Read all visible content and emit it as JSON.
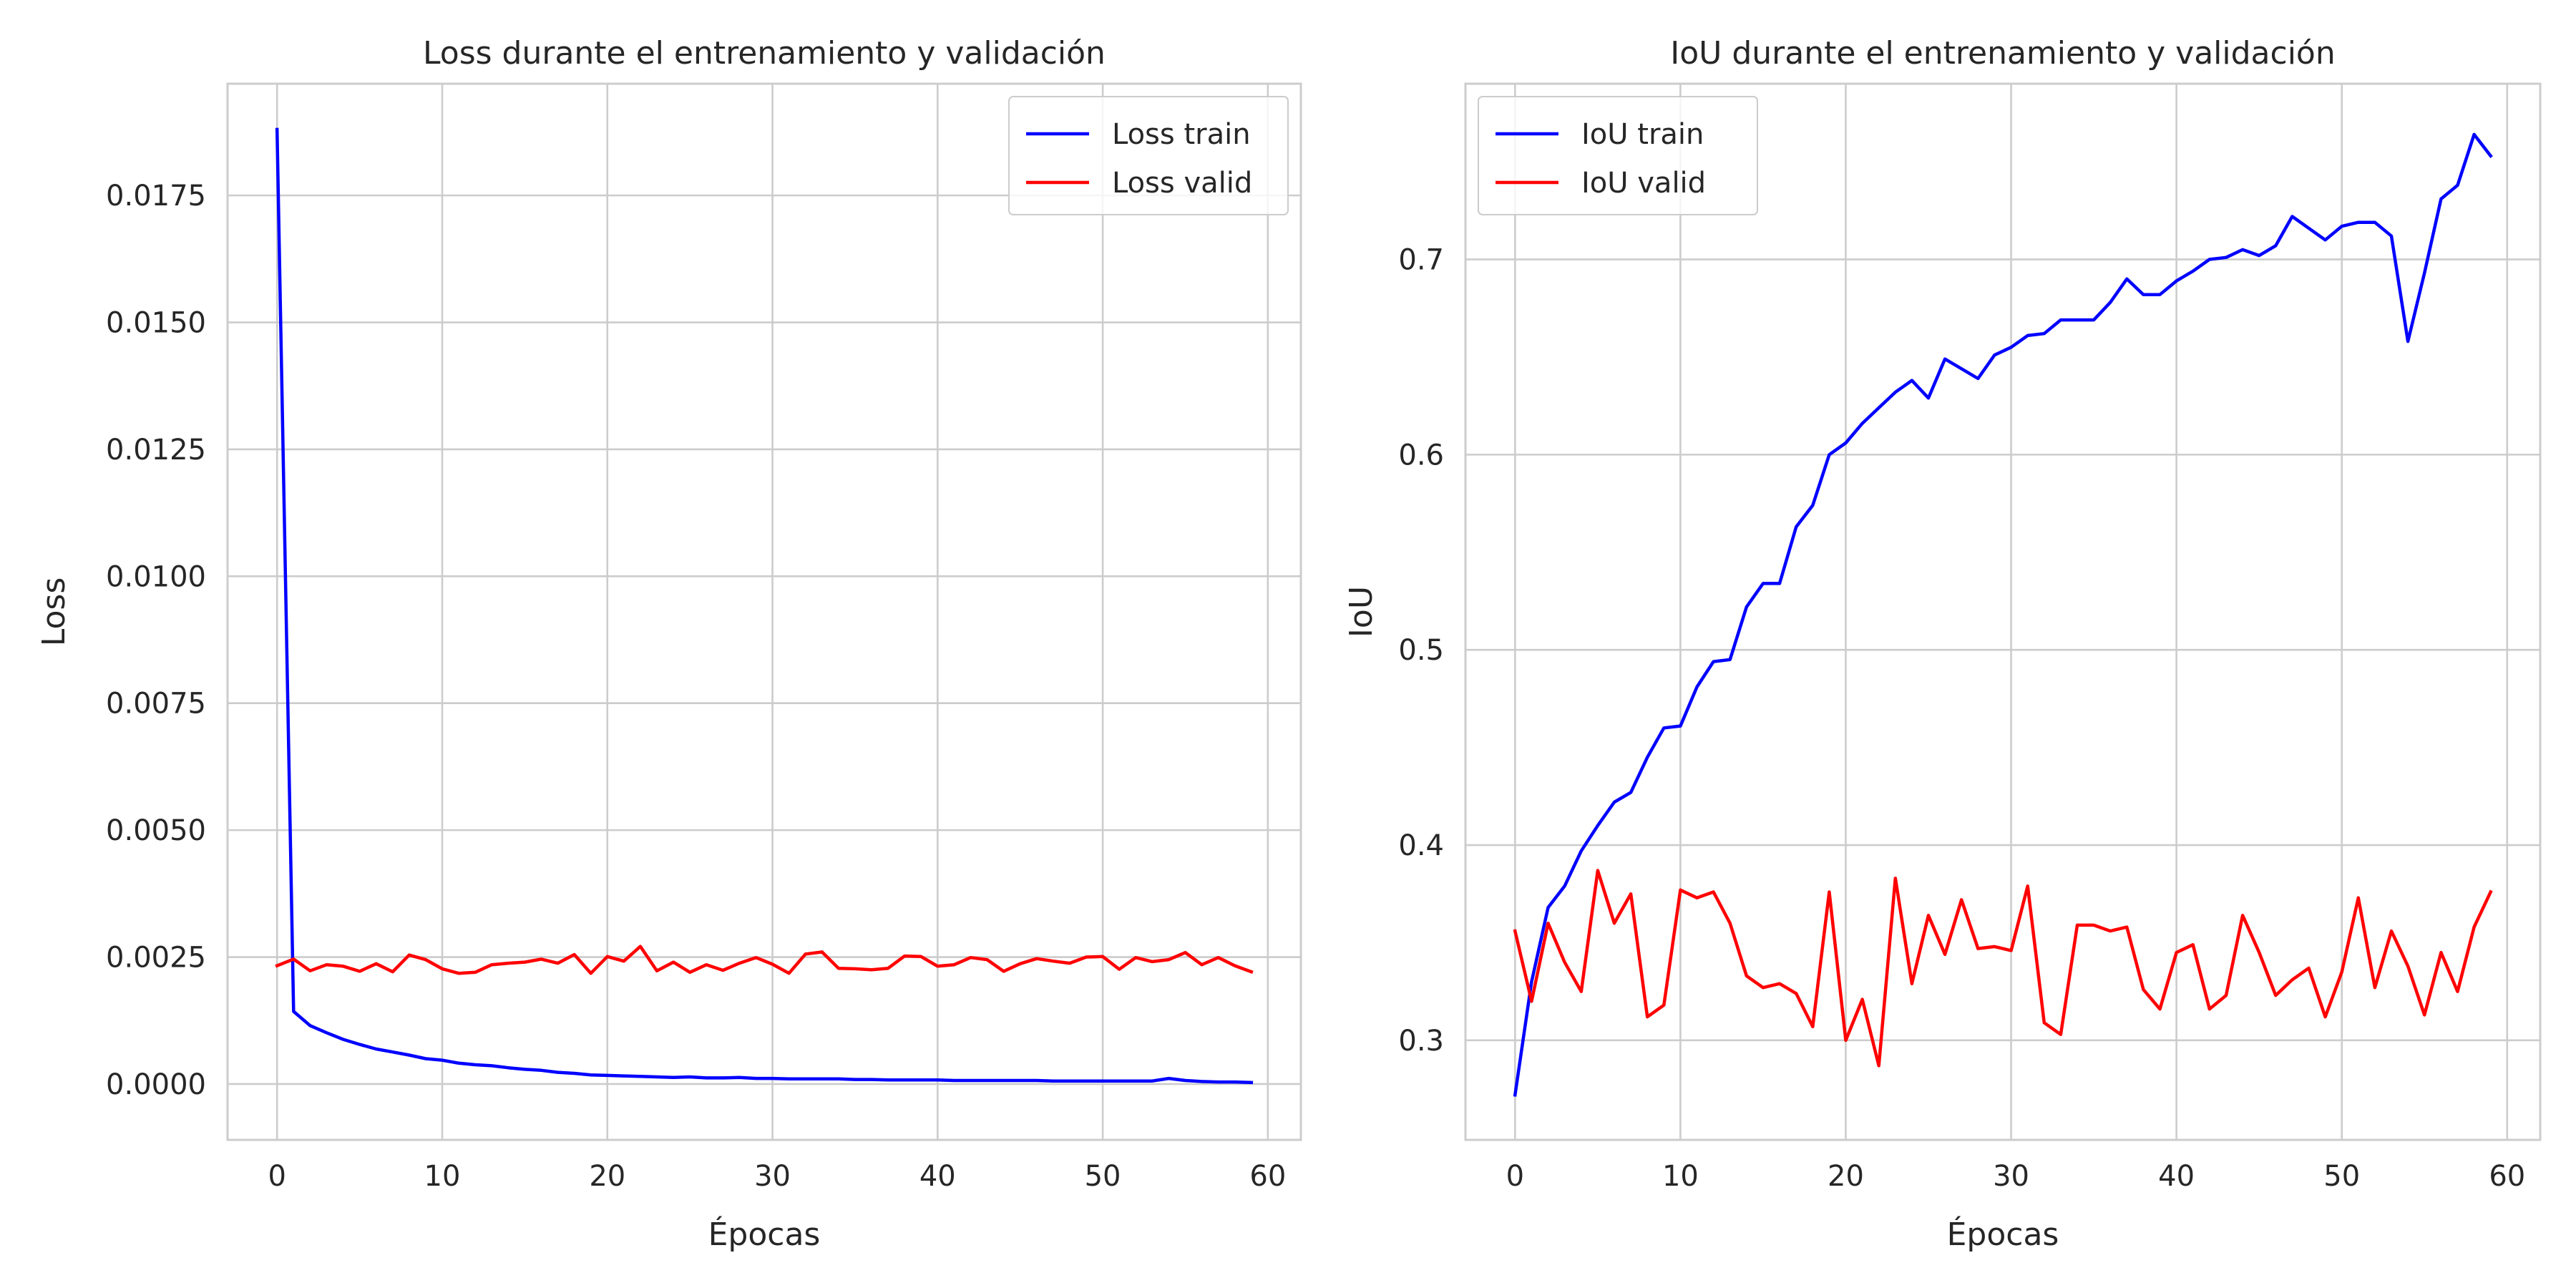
{
  "chart_data": [
    {
      "type": "line",
      "title": "Loss durante el entrenamiento y validación",
      "xlabel": "Épocas",
      "ylabel": "Loss",
      "xlim": [
        -3,
        62
      ],
      "ylim": [
        -0.0011,
        0.0197
      ],
      "xticks": [
        0,
        10,
        20,
        30,
        40,
        50,
        60
      ],
      "xtick_labels": [
        "0",
        "10",
        "20",
        "30",
        "40",
        "50",
        "60"
      ],
      "yticks": [
        0,
        0.0025,
        0.005,
        0.0075,
        0.01,
        0.0125,
        0.015,
        0.0175
      ],
      "ytick_labels": [
        "0.0000",
        "0.0025",
        "0.0050",
        "0.0075",
        "0.0100",
        "0.0125",
        "0.0150",
        "0.0175"
      ],
      "grid": true,
      "legend_position": "upper-right",
      "x": [
        0,
        1,
        2,
        3,
        4,
        5,
        6,
        7,
        8,
        9,
        10,
        11,
        12,
        13,
        14,
        15,
        16,
        17,
        18,
        19,
        20,
        21,
        22,
        23,
        24,
        25,
        26,
        27,
        28,
        29,
        30,
        31,
        32,
        33,
        34,
        35,
        36,
        37,
        38,
        39,
        40,
        41,
        42,
        43,
        44,
        45,
        46,
        47,
        48,
        49,
        50,
        51,
        52,
        53,
        54,
        55,
        56,
        57,
        58,
        59
      ],
      "series": [
        {
          "name": "Loss train",
          "color": "#0000ff",
          "values": [
            0.0188,
            0.00143,
            0.00115,
            0.00101,
            0.00088,
            0.00078,
            0.00069,
            0.00063,
            0.00057,
            0.0005,
            0.00047,
            0.00041,
            0.00038,
            0.00036,
            0.00032,
            0.00029,
            0.00027,
            0.00023,
            0.00021,
            0.00018,
            0.00017,
            0.00016,
            0.00015,
            0.00014,
            0.00013,
            0.00014,
            0.00012,
            0.00012,
            0.00013,
            0.00011,
            0.00011,
            0.0001,
            0.0001,
            0.0001,
            0.0001,
            9e-05,
            9e-05,
            8e-05,
            8e-05,
            8e-05,
            8e-05,
            7e-05,
            7e-05,
            7e-05,
            7e-05,
            7e-05,
            7e-05,
            6e-05,
            6e-05,
            6e-05,
            6e-05,
            6e-05,
            6e-05,
            6e-05,
            0.00011,
            7e-05,
            5e-05,
            4e-05,
            4e-05,
            3e-05
          ]
        },
        {
          "name": "Loss valid",
          "color": "#ff0000",
          "values": [
            0.00233,
            0.00246,
            0.00223,
            0.00235,
            0.00232,
            0.00222,
            0.00237,
            0.00221,
            0.00254,
            0.00245,
            0.00227,
            0.00218,
            0.0022,
            0.00235,
            0.00238,
            0.0024,
            0.00246,
            0.00238,
            0.00255,
            0.00218,
            0.00251,
            0.00242,
            0.00271,
            0.00223,
            0.0024,
            0.0022,
            0.00235,
            0.00224,
            0.00238,
            0.00249,
            0.00236,
            0.00218,
            0.00256,
            0.0026,
            0.00228,
            0.00227,
            0.00225,
            0.00228,
            0.00252,
            0.00251,
            0.00232,
            0.00235,
            0.00249,
            0.00245,
            0.00222,
            0.00237,
            0.00247,
            0.00242,
            0.00238,
            0.0025,
            0.00251,
            0.00226,
            0.00249,
            0.00241,
            0.00245,
            0.00259,
            0.00235,
            0.00249,
            0.00233,
            0.00221
          ]
        }
      ]
    },
    {
      "type": "line",
      "title": "IoU durante el entrenamiento y validación",
      "xlabel": "Épocas",
      "ylabel": "IoU",
      "xlim": [
        -3,
        62
      ],
      "ylim": [
        0.249,
        0.79
      ],
      "xticks": [
        0,
        10,
        20,
        30,
        40,
        50,
        60
      ],
      "xtick_labels": [
        "0",
        "10",
        "20",
        "30",
        "40",
        "50",
        "60"
      ],
      "yticks": [
        0.3,
        0.4,
        0.5,
        0.6,
        0.7
      ],
      "ytick_labels": [
        "0.3",
        "0.4",
        "0.5",
        "0.6",
        "0.7"
      ],
      "grid": true,
      "legend_position": "upper-left",
      "x": [
        0,
        1,
        2,
        3,
        4,
        5,
        6,
        7,
        8,
        9,
        10,
        11,
        12,
        13,
        14,
        15,
        16,
        17,
        18,
        19,
        20,
        21,
        22,
        23,
        24,
        25,
        26,
        27,
        28,
        29,
        30,
        31,
        32,
        33,
        34,
        35,
        36,
        37,
        38,
        39,
        40,
        41,
        42,
        43,
        44,
        45,
        46,
        47,
        48,
        49,
        50,
        51,
        52,
        53,
        54,
        55,
        56,
        57,
        58,
        59
      ],
      "series": [
        {
          "name": "IoU train",
          "color": "#0000ff",
          "values": [
            0.272,
            0.33,
            0.368,
            0.379,
            0.397,
            0.41,
            0.422,
            0.427,
            0.445,
            0.46,
            0.461,
            0.481,
            0.494,
            0.495,
            0.522,
            0.534,
            0.534,
            0.563,
            0.574,
            0.6,
            0.606,
            0.616,
            0.624,
            0.632,
            0.638,
            0.629,
            0.649,
            0.644,
            0.639,
            0.651,
            0.655,
            0.661,
            0.662,
            0.669,
            0.669,
            0.669,
            0.678,
            0.69,
            0.682,
            0.682,
            0.689,
            0.694,
            0.7,
            0.701,
            0.705,
            0.702,
            0.707,
            0.722,
            0.716,
            0.71,
            0.717,
            0.719,
            0.719,
            0.712,
            0.658,
            0.693,
            0.731,
            0.738,
            0.764,
            0.753
          ]
        },
        {
          "name": "IoU valid",
          "color": "#ff0000",
          "values": [
            0.356,
            0.32,
            0.36,
            0.34,
            0.325,
            0.387,
            0.36,
            0.375,
            0.312,
            0.318,
            0.377,
            0.373,
            0.376,
            0.36,
            0.333,
            0.327,
            0.329,
            0.324,
            0.307,
            0.376,
            0.3,
            0.321,
            0.287,
            0.383,
            0.329,
            0.364,
            0.344,
            0.372,
            0.347,
            0.348,
            0.346,
            0.379,
            0.309,
            0.303,
            0.359,
            0.359,
            0.356,
            0.358,
            0.326,
            0.316,
            0.345,
            0.349,
            0.316,
            0.323,
            0.364,
            0.345,
            0.323,
            0.331,
            0.337,
            0.312,
            0.335,
            0.373,
            0.327,
            0.356,
            0.338,
            0.313,
            0.345,
            0.325,
            0.358,
            0.376
          ]
        }
      ]
    }
  ]
}
